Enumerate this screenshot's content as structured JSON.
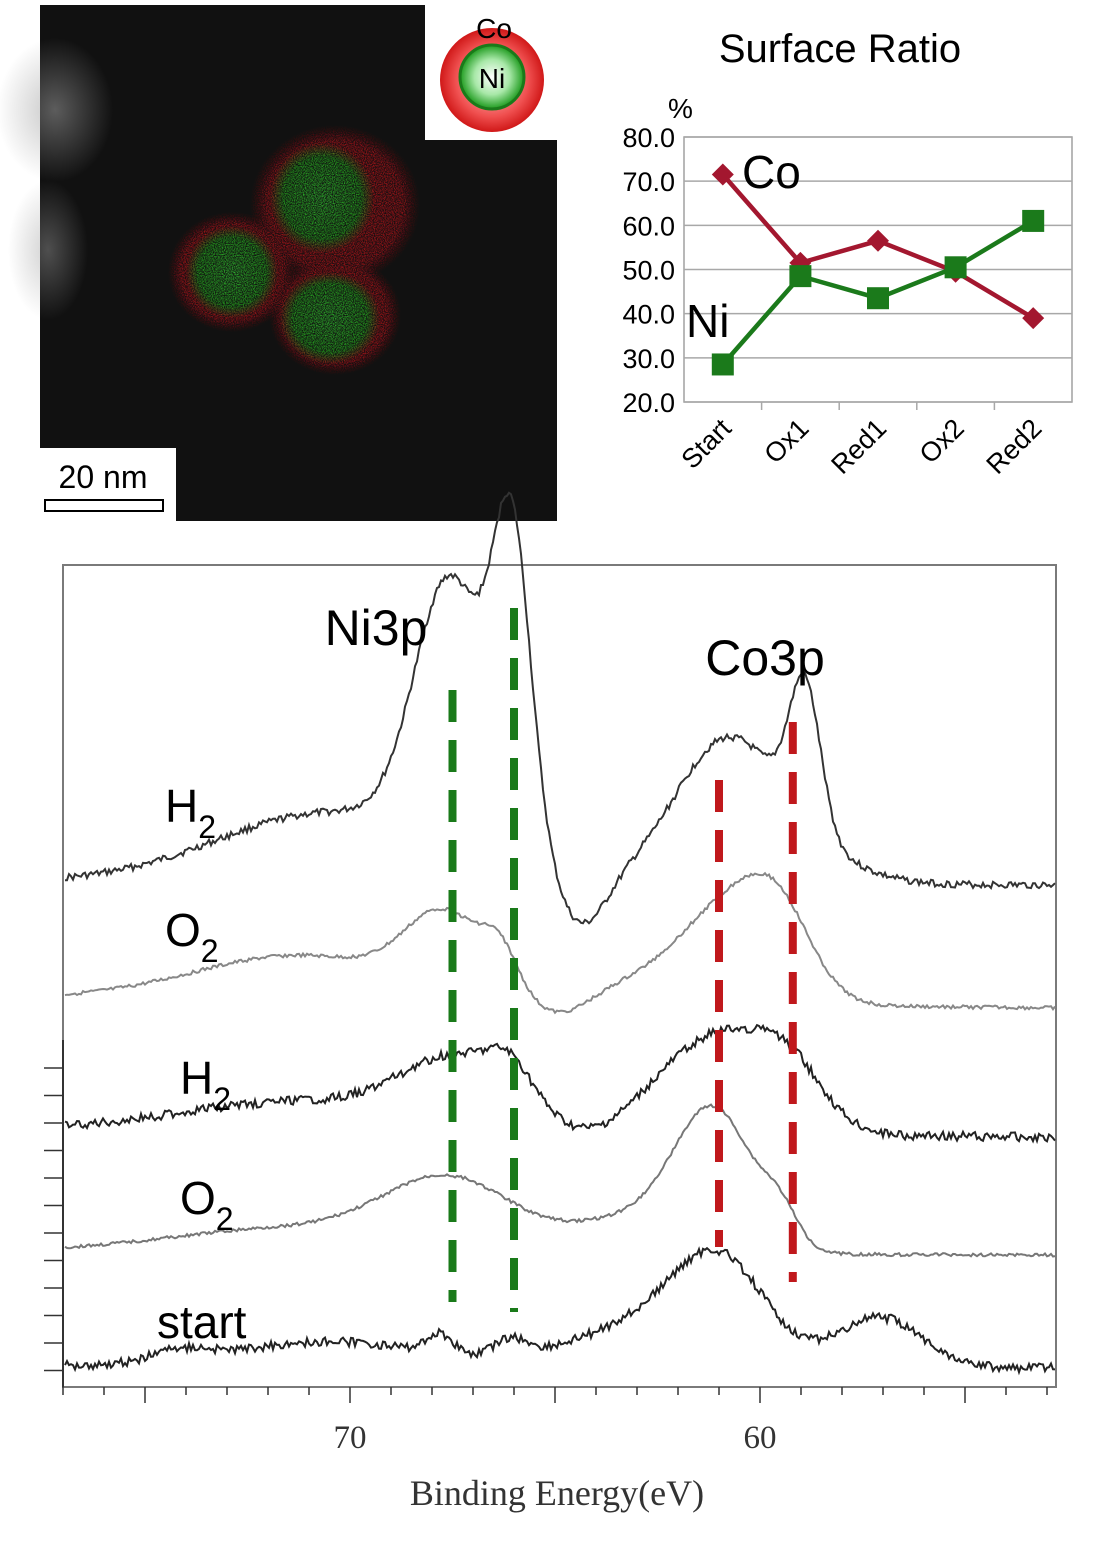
{
  "micrograph": {
    "scale_bar_label": "20 nm",
    "colors": {
      "co": "#e8141c",
      "ni": "#21d921",
      "background": "#111111"
    }
  },
  "inset": {
    "shell_label": "Co",
    "core_label": "Ni"
  },
  "chart_data": [
    {
      "type": "line",
      "title": "Surface Ratio",
      "ylabel": "%",
      "xlabel": "",
      "categories": [
        "Start",
        "Ox1",
        "Red1",
        "Ox2",
        "Red2"
      ],
      "ylim": [
        20.0,
        80.0
      ],
      "yticks": [
        "20.0",
        "30.0",
        "40.0",
        "50.0",
        "60.0",
        "70.0",
        "80.0"
      ],
      "grid": true,
      "series": [
        {
          "name": "Co",
          "color": "#a3172f",
          "marker": "diamond",
          "values": [
            71.5,
            51.5,
            56.5,
            49.5,
            39.0
          ]
        },
        {
          "name": "Ni",
          "color": "#1b7a1b",
          "marker": "square",
          "values": [
            28.5,
            48.5,
            43.5,
            50.5,
            61.0
          ]
        }
      ]
    },
    {
      "type": "line",
      "title": "",
      "xlabel": "Binding Energy(eV)",
      "ylabel": "",
      "xlim": [
        77,
        53
      ],
      "xticks": [
        "70",
        "60"
      ],
      "peak_labels": [
        "Ni3p",
        "Co3p"
      ],
      "ni_marker_positions_eV": [
        67.5,
        66.0
      ],
      "co_marker_positions_eV": [
        61.0,
        59.2
      ],
      "marker_colors": {
        "ni": "#1a7a1a",
        "co": "#c0181c"
      },
      "series": [
        {
          "name": "H2",
          "label_main": "H",
          "label_sub": "2",
          "color": "#333333"
        },
        {
          "name": "O2",
          "label_main": "O",
          "label_sub": "2",
          "color": "#888888"
        },
        {
          "name": "H2",
          "label_main": "H",
          "label_sub": "2",
          "color": "#222222"
        },
        {
          "name": "O2",
          "label_main": "O",
          "label_sub": "2",
          "color": "#777777"
        },
        {
          "name": "start",
          "label_main": "start",
          "label_sub": "",
          "color": "#222222"
        }
      ]
    }
  ]
}
